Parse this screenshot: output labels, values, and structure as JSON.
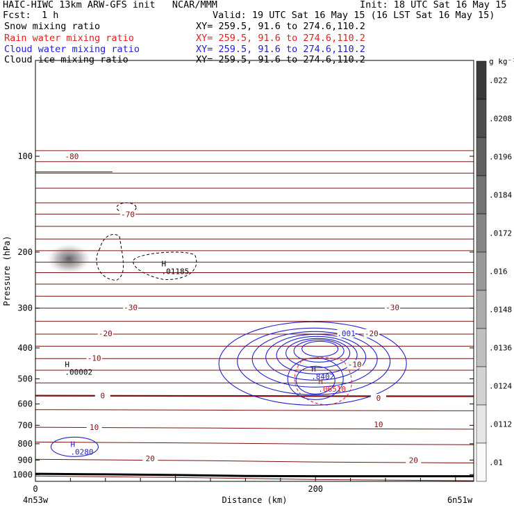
{
  "header": {
    "title": "HAIC-HIWC 13km ARW-GFS init   NCAR/MMM",
    "init": "Init: 18 UTC Sat 16 May 15",
    "fcst_label": "Fcst:",
    "fcst_value": "1 h",
    "valid": "Valid: 19 UTC Sat 16 May 15 (16 LST Sat 16 May 15)"
  },
  "fields": [
    {
      "name": "Snow mixing ratio",
      "xy": "XY= 259.5, 91.6 to 274.6,110.2",
      "color": "#000000"
    },
    {
      "name": "Rain water mixing ratio",
      "xy": "XY= 259.5, 91.6 to 274.6,110.2",
      "color": "#e02020"
    },
    {
      "name": "Cloud water mixing ratio",
      "xy": "XY= 259.5, 91.6 to 274.6,110.2",
      "color": "#2020d0"
    },
    {
      "name": "Cloud ice mixing ratio",
      "xy": "XY= 259.5, 91.6 to 274.6,110.2",
      "color": "#000000"
    }
  ],
  "colorbar": {
    "unit": "g kg⁻¹",
    "ticks": [
      ".022",
      ".0208",
      ".0196",
      ".0184",
      ".0172",
      ".016",
      ".0148",
      ".0136",
      ".0124",
      ".0112",
      ".01"
    ],
    "color_dark": "#3a3a3a",
    "color_light": "#f8f8f8"
  },
  "chart_data": {
    "type": "contour",
    "xlabel": "Distance (km)",
    "ylabel": "Pressure (hPa)",
    "x_ticks": [
      0,
      200
    ],
    "xlim": [
      0,
      313
    ],
    "y_ticks": [
      100,
      200,
      300,
      400,
      500,
      600,
      700,
      800,
      900,
      1000
    ],
    "ylim": [
      1050,
      50
    ],
    "y_scale": "log",
    "x_endpoints": {
      "left": "4n53w",
      "right": "6n51w"
    },
    "temperature_contours": {
      "color": "#7a1010",
      "labels": [
        {
          "text": "-80",
          "x": 26,
          "p": 100
        },
        {
          "text": "-70",
          "x": 66,
          "p": 152
        },
        {
          "text": "-30",
          "x": 68,
          "p": 298
        },
        {
          "text": "-30",
          "x": 255,
          "p": 298
        },
        {
          "text": "-20",
          "x": 50,
          "p": 360
        },
        {
          "text": "-20",
          "x": 240,
          "p": 360
        },
        {
          "text": "-10",
          "x": 42,
          "p": 430
        },
        {
          "text": "-10",
          "x": 228,
          "p": 450
        },
        {
          "text": "0",
          "x": 48,
          "p": 565
        },
        {
          "text": "0",
          "x": 245,
          "p": 575
        },
        {
          "text": "10",
          "x": 42,
          "p": 710
        },
        {
          "text": "10",
          "x": 245,
          "p": 695
        },
        {
          "text": "20",
          "x": 82,
          "p": 890
        },
        {
          "text": "20",
          "x": 270,
          "p": 900
        }
      ]
    },
    "maxima": [
      {
        "field": "Cloud ice mixing ratio",
        "label": "H",
        "value": ".01185",
        "x": 93,
        "p": 222
      },
      {
        "field": "Snow mixing ratio",
        "label": "H",
        "value": ".00002",
        "x": 24,
        "p": 460
      },
      {
        "field": "Cloud water mixing ratio",
        "label": "H",
        "value": ".8402",
        "x": 200,
        "p": 475
      },
      {
        "field": "Rain water mixing ratio",
        "label": "H",
        "value": ".06510",
        "x": 205,
        "p": 520
      },
      {
        "field": "Cloud water mixing ratio",
        "label": "H",
        "value": ".0280",
        "x": 28,
        "p": 818
      }
    ],
    "cloud_water_contour_label": ".001",
    "surface_pressure_trace": [
      [
        0,
        994
      ],
      [
        50,
        998
      ],
      [
        100,
        1003
      ],
      [
        150,
        1010
      ],
      [
        200,
        1012
      ],
      [
        250,
        1012
      ],
      [
        313,
        1012
      ]
    ]
  }
}
